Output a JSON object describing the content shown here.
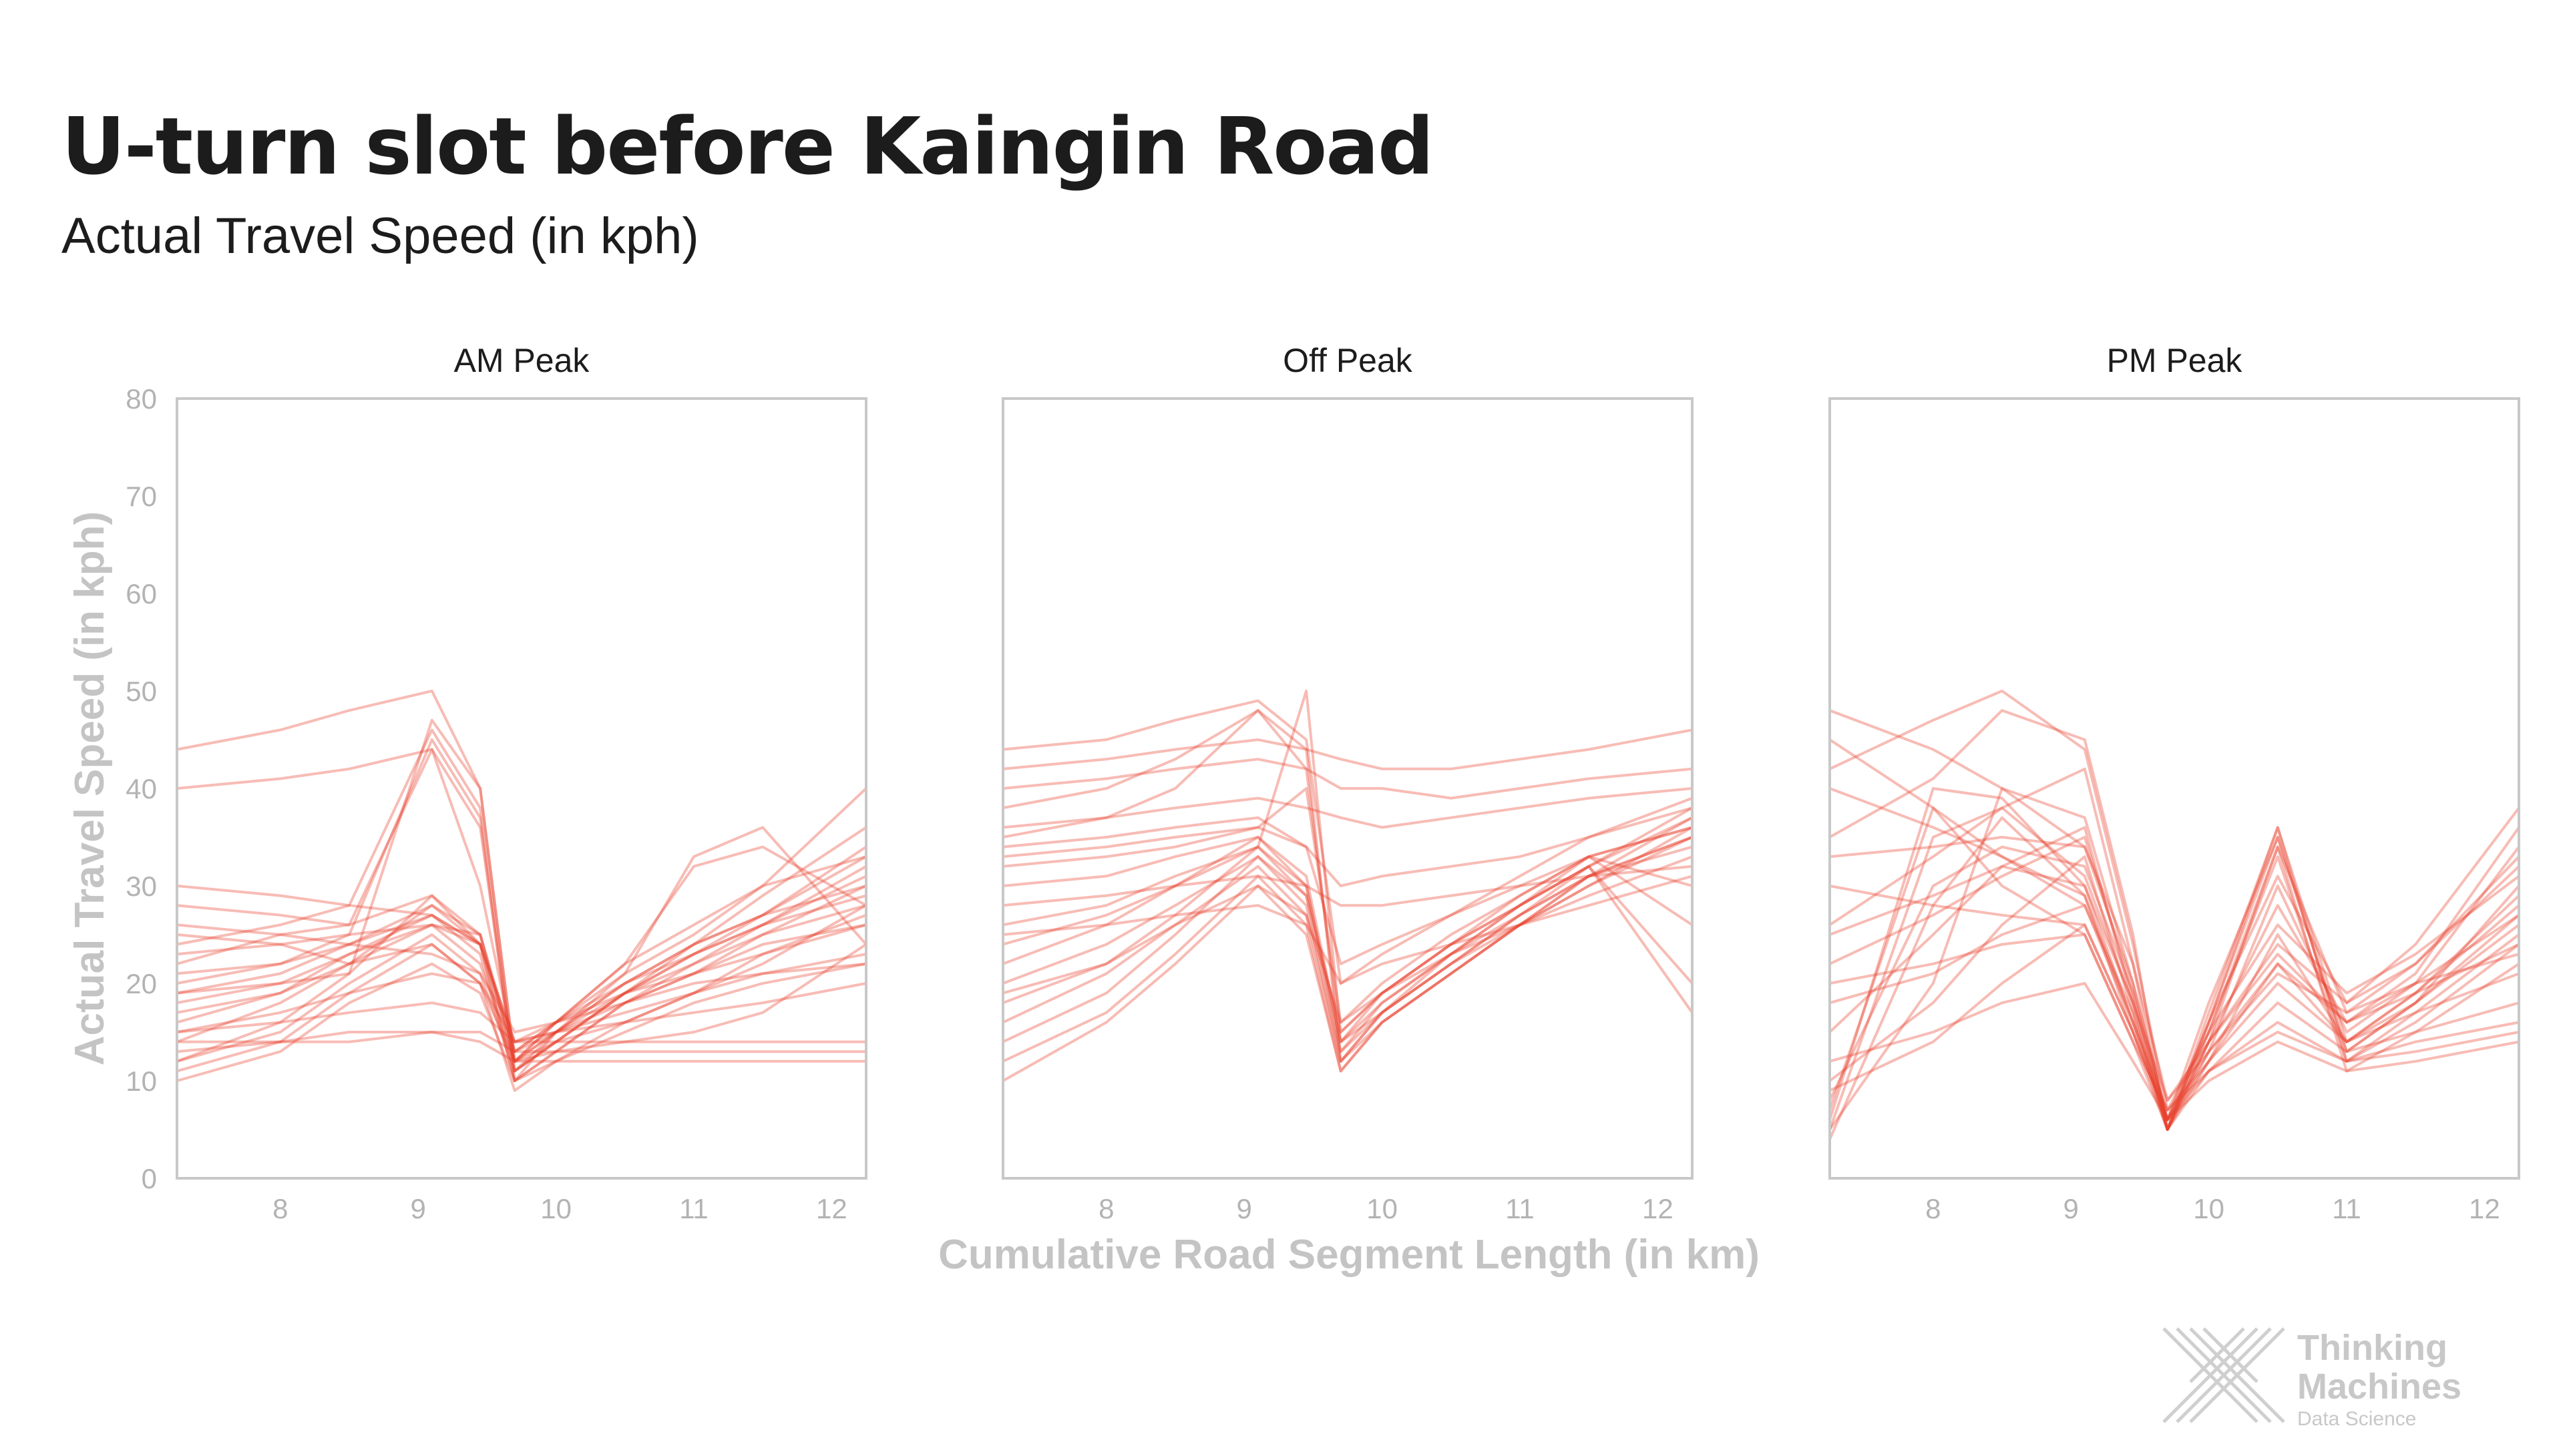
{
  "title": "U-turn slot before Kaingin Road",
  "subtitle": "Actual Travel Speed (in kph)",
  "logo": {
    "line1": "Thinking",
    "line2": "Machines",
    "line3": "Data Science"
  },
  "colors": {
    "line": "#e8402c",
    "axis": "#c8c8c8",
    "tick_text": "#b3b3b3",
    "axis_title": "#c4c4c4"
  },
  "chart_data": {
    "type": "line",
    "xlabel": "Cumulative Road Segment Length (in km)",
    "ylabel": "Actual Travel Speed (in kph)",
    "xlim": [
      7.25,
      12.25
    ],
    "ylim": [
      0,
      80
    ],
    "xticks": [
      8,
      9,
      10,
      11,
      12
    ],
    "yticks": [
      0,
      10,
      20,
      30,
      40,
      50,
      60,
      70,
      80
    ],
    "x": [
      7.25,
      8.0,
      8.5,
      9.1,
      9.45,
      9.7,
      10.0,
      10.5,
      11.0,
      11.5,
      12.25
    ],
    "panels": [
      {
        "name": "AM Peak",
        "series": [
          {
            "values": [
              14,
              18,
              22,
              28,
              24,
              11,
              14,
              19,
              23,
              26,
              32
            ]
          },
          {
            "values": [
              22,
              25,
              26,
              29,
              25,
              12,
              15,
              20,
              24,
              27,
              34
            ]
          },
          {
            "values": [
              16,
              19,
              23,
              27,
              23,
              10,
              13,
              18,
              22,
              25,
              30
            ]
          },
          {
            "values": [
              12,
              15,
              20,
              25,
              21,
              11,
              14,
              16,
              19,
              22,
              28
            ]
          },
          {
            "values": [
              25,
              24,
              22,
              24,
              20,
              12,
              13,
              14,
              15,
              17,
              24
            ]
          },
          {
            "values": [
              18,
              20,
              23,
              26,
              25,
              13,
              15,
              18,
              21,
              23,
              26
            ]
          },
          {
            "values": [
              15,
              16,
              17,
              18,
              17,
              14,
              14,
              14,
              14,
              14,
              14
            ]
          },
          {
            "values": [
              14,
              14,
              15,
              15,
              15,
              13,
              13,
              13,
              13,
              13,
              13
            ]
          },
          {
            "values": [
              13,
              14,
              14,
              15,
              14,
              12,
              12,
              12,
              12,
              12,
              12
            ]
          },
          {
            "values": [
              19,
              20,
              21,
              47,
              40,
              12,
              14,
              19,
              22,
              26,
              29
            ]
          },
          {
            "values": [
              24,
              26,
              28,
              46,
              38,
              11,
              15,
              20,
              23,
              27,
              30
            ]
          },
          {
            "values": [
              20,
              22,
              25,
              45,
              37,
              10,
              13,
              18,
              21,
              25,
              28
            ]
          },
          {
            "values": [
              28,
              27,
              26,
              44,
              30,
              13,
              16,
              22,
              26,
              30,
              33
            ]
          },
          {
            "values": [
              12,
              16,
              21,
              29,
              24,
              10,
              15,
              21,
              33,
              36,
              24
            ]
          },
          {
            "values": [
              17,
              19,
              22,
              26,
              22,
              12,
              16,
              22,
              32,
              34,
              28
            ]
          },
          {
            "values": [
              40,
              41,
              42,
              44,
              36,
              11,
              14,
              19,
              24,
              29,
              36
            ]
          },
          {
            "values": [
              44,
              46,
              48,
              50,
              40,
              12,
              16,
              21,
              25,
              30,
              40
            ]
          },
          {
            "values": [
              11,
              14,
              19,
              24,
              20,
              9,
              12,
              16,
              19,
              23,
              27
            ]
          },
          {
            "values": [
              30,
              29,
              28,
              27,
              24,
              14,
              16,
              19,
              21,
              24,
              26
            ]
          },
          {
            "values": [
              26,
              25,
              24,
              23,
              21,
              15,
              16,
              18,
              20,
              21,
              22
            ]
          },
          {
            "values": [
              21,
              22,
              24,
              27,
              24,
              13,
              16,
              20,
              24,
              27,
              33
            ]
          },
          {
            "values": [
              10,
              13,
              18,
              22,
              19,
              10,
              12,
              15,
              18,
              20,
              22
            ]
          },
          {
            "values": [
              23,
              24,
              25,
              26,
              24,
              14,
              15,
              17,
              19,
              21,
              23
            ]
          },
          {
            "values": [
              19,
              21,
              24,
              28,
              25,
              12,
              15,
              19,
              23,
              26,
              31
            ]
          },
          {
            "values": [
              15,
              17,
              19,
              21,
              20,
              14,
              15,
              16,
              17,
              18,
              20
            ]
          }
        ]
      },
      {
        "name": "Off Peak",
        "series": [
          {
            "values": [
              14,
              19,
              25,
              33,
              28,
              12,
              17,
              22,
              27,
              31,
              37
            ]
          },
          {
            "values": [
              18,
              22,
              27,
              34,
              30,
              13,
              18,
              23,
              28,
              32,
              38
            ]
          },
          {
            "values": [
              22,
              26,
              30,
              35,
              31,
              14,
              19,
              24,
              28,
              33,
              36
            ]
          },
          {
            "values": [
              26,
              28,
              31,
              34,
              29,
              13,
              17,
              22,
              26,
              31,
              35
            ]
          },
          {
            "values": [
              12,
              17,
              23,
              31,
              26,
              11,
              16,
              21,
              26,
              30,
              36
            ]
          },
          {
            "values": [
              30,
              31,
              33,
              35,
              30,
              14,
              18,
              23,
              27,
              31,
              34
            ]
          },
          {
            "values": [
              35,
              37,
              40,
              48,
              42,
              14,
              17,
              22,
              27,
              32,
              37
            ]
          },
          {
            "values": [
              38,
              40,
              43,
              48,
              44,
              12,
              16,
              21,
              26,
              31,
              35
            ]
          },
          {
            "values": [
              40,
              41,
              42,
              43,
              42,
              40,
              40,
              39,
              40,
              41,
              42
            ]
          },
          {
            "values": [
              42,
              43,
              44,
              45,
              44,
              43,
              42,
              42,
              43,
              44,
              46
            ]
          },
          {
            "values": [
              36,
              37,
              38,
              39,
              38,
              37,
              36,
              37,
              38,
              39,
              40
            ]
          },
          {
            "values": [
              28,
              29,
              30,
              31,
              30,
              28,
              28,
              29,
              30,
              31,
              32
            ]
          },
          {
            "values": [
              20,
              24,
              28,
              33,
              29,
              15,
              19,
              24,
              29,
              33,
              30
            ]
          },
          {
            "values": [
              32,
              33,
              34,
              36,
              40,
              16,
              20,
              25,
              29,
              33,
              26
            ]
          },
          {
            "values": [
              24,
              27,
              30,
              34,
              50,
              15,
              19,
              24,
              28,
              32,
              20
            ]
          },
          {
            "values": [
              16,
              21,
              26,
              32,
              27,
              12,
              17,
              23,
              28,
              32,
              17
            ]
          },
          {
            "values": [
              44,
              45,
              47,
              49,
              45,
              20,
              23,
              27,
              31,
              35,
              39
            ]
          },
          {
            "values": [
              10,
              16,
              22,
              30,
              25,
              11,
              16,
              21,
              26,
              30,
              35
            ]
          },
          {
            "values": [
              34,
              35,
              36,
              37,
              34,
              22,
              24,
              27,
              30,
              33,
              36
            ]
          },
          {
            "values": [
              25,
              26,
              27,
              28,
              26,
              20,
              22,
              24,
              26,
              28,
              31
            ]
          },
          {
            "values": [
              33,
              34,
              35,
              36,
              34,
              30,
              31,
              32,
              33,
              35,
              38
            ]
          },
          {
            "values": [
              19,
              22,
              26,
              30,
              27,
              16,
              19,
              23,
              26,
              29,
              33
            ]
          }
        ]
      },
      {
        "name": "PM Peak",
        "series": [
          {
            "values": [
              5,
              35,
              38,
              31,
              18,
              5,
              16,
              36,
              12,
              16,
              24
            ]
          },
          {
            "values": [
              6,
              40,
              39,
              30,
              16,
              6,
              18,
              35,
              13,
              18,
              27
            ]
          },
          {
            "values": [
              4,
              28,
              37,
              29,
              15,
              5,
              14,
              34,
              11,
              15,
              22
            ]
          },
          {
            "values": [
              7,
              38,
              33,
              28,
              17,
              5,
              17,
              36,
              14,
              19,
              28
            ]
          },
          {
            "values": [
              5,
              20,
              40,
              37,
              20,
              6,
              15,
              33,
              12,
              17,
              25
            ]
          },
          {
            "values": [
              8,
              30,
              34,
              32,
              19,
              5,
              16,
              35,
              13,
              18,
              30
            ]
          },
          {
            "values": [
              45,
              38,
              30,
              25,
              14,
              5,
              12,
              20,
              14,
              17,
              21
            ]
          },
          {
            "values": [
              48,
              44,
              40,
              34,
              20,
              6,
              13,
              22,
              16,
              19,
              24
            ]
          },
          {
            "values": [
              40,
              36,
              33,
              29,
              16,
              5,
              11,
              18,
              13,
              15,
              18
            ]
          },
          {
            "values": [
              30,
              28,
              27,
              26,
              15,
              6,
              11,
              16,
              12,
              14,
              16
            ]
          },
          {
            "values": [
              20,
              22,
              24,
              25,
              14,
              7,
              11,
              15,
              12,
              13,
              15
            ]
          },
          {
            "values": [
              12,
              15,
              18,
              20,
              12,
              6,
              10,
              14,
              11,
              12,
              14
            ]
          },
          {
            "values": [
              35,
              41,
              48,
              45,
              25,
              5,
              14,
              24,
              18,
              22,
              32
            ]
          },
          {
            "values": [
              26,
              33,
              38,
              42,
              22,
              5,
              13,
              30,
              15,
              20,
              34
            ]
          },
          {
            "values": [
              15,
              25,
              32,
              36,
              18,
              6,
              14,
              28,
              16,
              21,
              36
            ]
          },
          {
            "values": [
              10,
              18,
              26,
              33,
              17,
              5,
              15,
              34,
              17,
              22,
              33
            ]
          },
          {
            "values": [
              22,
              27,
              31,
              35,
              19,
              6,
              16,
              31,
              18,
              24,
              38
            ]
          },
          {
            "values": [
              18,
              21,
              25,
              28,
              16,
              7,
              12,
              22,
              14,
              18,
              26
            ]
          },
          {
            "values": [
              33,
              34,
              35,
              34,
              22,
              8,
              13,
              21,
              17,
              20,
              23
            ]
          },
          {
            "values": [
              9,
              14,
              20,
              26,
              15,
              6,
              12,
              25,
              14,
              19,
              29
            ]
          },
          {
            "values": [
              42,
              47,
              50,
              44,
              24,
              7,
              15,
              26,
              19,
              23,
              31
            ]
          },
          {
            "values": [
              25,
              29,
              32,
              30,
              18,
              8,
              14,
              23,
              16,
              20,
              27
            ]
          }
        ]
      }
    ]
  }
}
